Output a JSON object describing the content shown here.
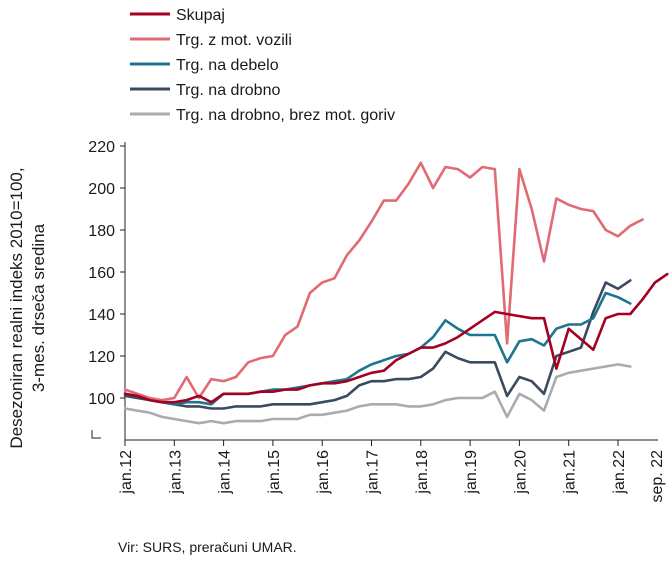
{
  "chart_data": {
    "type": "line",
    "title": "",
    "ylabel_lines": [
      "Desezoniran realni indeks 2010=100,",
      "3-mes. drseča sredina"
    ],
    "xlabel": "",
    "ylim": [
      80,
      220
    ],
    "yticks": [
      100,
      120,
      140,
      160,
      180,
      200,
      220
    ],
    "xticks": [
      "jan.12",
      "jan.13",
      "jan.14",
      "jan.15",
      "jan.16",
      "jan.17",
      "jan.18",
      "jan.19",
      "jan.20",
      "jan.21",
      "jan.22",
      "sep. 22"
    ],
    "legend_position": "top-left",
    "grid": false,
    "x_start": "2012-01",
    "x_step": "3 months",
    "series": [
      {
        "name": "Skupaj",
        "color": "#A50021",
        "values": [
          102,
          101,
          99,
          98,
          98,
          99,
          101,
          98,
          102,
          102,
          102,
          103,
          103,
          104,
          104,
          106,
          107,
          107,
          108,
          110,
          112,
          113,
          118,
          121,
          124,
          124,
          126,
          129,
          133,
          137,
          141,
          140,
          139,
          138,
          138,
          114,
          133,
          128,
          123,
          138,
          140,
          140,
          147,
          155,
          159
        ]
      },
      {
        "name": "Trg. z mot. vozili",
        "color": "#E06B72",
        "values": [
          104,
          102,
          100,
          99,
          100,
          110,
          100,
          109,
          108,
          110,
          117,
          119,
          120,
          130,
          134,
          150,
          155,
          157,
          168,
          175,
          184,
          194,
          194,
          202,
          212,
          200,
          210,
          209,
          205,
          210,
          209,
          126,
          209,
          190,
          165,
          195,
          192,
          190,
          189,
          180,
          177,
          182,
          185
        ]
      },
      {
        "name": "Trg. na debelo",
        "color": "#1F7490",
        "values": [
          102,
          101,
          99,
          98,
          97,
          98,
          98,
          97,
          102,
          102,
          102,
          103,
          104,
          104,
          105,
          106,
          107,
          108,
          109,
          113,
          116,
          118,
          120,
          121,
          124,
          129,
          137,
          133,
          130,
          130,
          130,
          117,
          127,
          128,
          125,
          133,
          135,
          135,
          138,
          150,
          148,
          145
        ]
      },
      {
        "name": "Trg. na drobno",
        "color": "#3B4A5E",
        "values": [
          101,
          100,
          99,
          98,
          97,
          96,
          96,
          95,
          95,
          96,
          96,
          96,
          97,
          97,
          97,
          97,
          98,
          99,
          101,
          106,
          108,
          108,
          109,
          109,
          110,
          114,
          122,
          119,
          117,
          117,
          117,
          101,
          110,
          108,
          102,
          120,
          122,
          124,
          141,
          155,
          152,
          156
        ]
      },
      {
        "name": "Trg. na drobno, brez mot. goriv",
        "color": "#A8ACAE",
        "values": [
          95,
          94,
          93,
          91,
          90,
          89,
          88,
          89,
          88,
          89,
          89,
          89,
          90,
          90,
          90,
          92,
          92,
          93,
          94,
          96,
          97,
          97,
          97,
          96,
          96,
          97,
          99,
          100,
          100,
          100,
          103,
          91,
          102,
          99,
          94,
          110,
          112,
          113,
          114,
          115,
          116,
          115
        ]
      }
    ]
  },
  "source": "Vir: SURS, preračuni UMAR."
}
